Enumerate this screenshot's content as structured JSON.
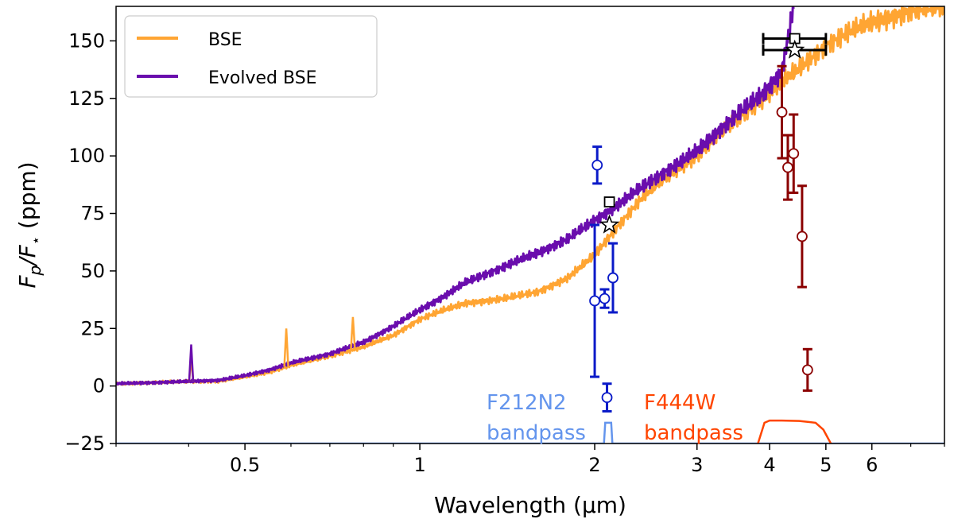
{
  "chart_data": {
    "type": "line",
    "xscale": "log",
    "xlabel_prefix": "Wavelength (",
    "xlabel_unit": "μm",
    "xlabel_suffix": ")",
    "ylabel_main": "F",
    "ylabel_sub_p": "p",
    "ylabel_slash": "/F",
    "ylabel_star": "⋆",
    "ylabel_units": " (ppm)",
    "xlim": [
      0.3,
      8.0
    ],
    "ylim": [
      -25,
      165
    ],
    "xticks": [
      {
        "value": 0.5,
        "label": "0.5"
      },
      {
        "value": 1,
        "label": "1"
      },
      {
        "value": 2,
        "label": "2"
      },
      {
        "value": 3,
        "label": "3"
      },
      {
        "value": 4,
        "label": "4"
      },
      {
        "value": 5,
        "label": "5"
      },
      {
        "value": 6,
        "label": "6"
      }
    ],
    "yticks": [
      {
        "value": -25,
        "label": "−25"
      },
      {
        "value": 0,
        "label": "0"
      },
      {
        "value": 25,
        "label": "25"
      },
      {
        "value": 50,
        "label": "50"
      },
      {
        "value": 75,
        "label": "75"
      },
      {
        "value": 100,
        "label": "100"
      },
      {
        "value": 125,
        "label": "125"
      },
      {
        "value": 150,
        "label": "150"
      }
    ],
    "legend": {
      "position": "top-left",
      "entries": [
        {
          "label": "BSE",
          "color": "#ffa533"
        },
        {
          "label": "Evolved BSE",
          "color": "#6a0dad"
        }
      ]
    },
    "series": [
      {
        "name": "BSE",
        "color": "#ffa533",
        "x": [
          0.3,
          0.35,
          0.4,
          0.45,
          0.5,
          0.55,
          0.6,
          0.7,
          0.8,
          0.9,
          1.0,
          1.1,
          1.2,
          1.4,
          1.6,
          1.8,
          2.0,
          2.2,
          2.4,
          2.6,
          2.8,
          3.0,
          3.3,
          3.6,
          3.9,
          4.2,
          4.5,
          5.0,
          5.5,
          6.0,
          7.0,
          8.0
        ],
        "y": [
          1,
          1.5,
          2,
          2,
          4,
          6,
          9,
          13,
          17,
          22,
          29,
          33,
          36,
          38,
          41,
          47,
          57,
          70,
          81,
          89,
          95,
          100,
          110,
          118,
          125,
          132,
          138,
          148,
          154,
          158,
          163,
          165
        ]
      },
      {
        "name": "Evolved BSE",
        "color": "#6a0dad",
        "x": [
          0.3,
          0.35,
          0.4,
          0.45,
          0.5,
          0.55,
          0.6,
          0.7,
          0.8,
          0.9,
          1.0,
          1.1,
          1.2,
          1.4,
          1.6,
          1.8,
          2.0,
          2.2,
          2.4,
          2.6,
          2.8,
          3.0,
          3.3,
          3.6,
          3.9,
          4.2,
          4.4
        ],
        "y": [
          1,
          1.5,
          2,
          2.5,
          4.5,
          7,
          10,
          14,
          19,
          26,
          33,
          39,
          45,
          52,
          58,
          64,
          72,
          79,
          86,
          92,
          97,
          102,
          112,
          120,
          127,
          137,
          165
        ]
      }
    ],
    "spikes": [
      {
        "series": "BSE",
        "x": 0.404,
        "y": 12
      },
      {
        "series": "Evolved BSE",
        "x": 0.404,
        "y": 18
      },
      {
        "series": "BSE",
        "x": 0.589,
        "y": 25
      },
      {
        "series": "BSE",
        "x": 0.767,
        "y": 30
      }
    ],
    "observations": [
      {
        "group": "F212N2",
        "color": "#0a1ac8",
        "x": 2.02,
        "y": 96,
        "yerr": 8
      },
      {
        "group": "F212N2",
        "color": "#0a1ac8",
        "x": 2.0,
        "y": 37,
        "yerr": 33
      },
      {
        "group": "F212N2",
        "color": "#0a1ac8",
        "x": 2.08,
        "y": 38,
        "yerr": 4
      },
      {
        "group": "F212N2",
        "color": "#0a1ac8",
        "x": 2.15,
        "y": 47,
        "yerr": 15
      },
      {
        "group": "F212N2",
        "color": "#0a1ac8",
        "x": 2.1,
        "y": -5,
        "yerr": 6
      },
      {
        "group": "F444W",
        "color": "#8b0000",
        "x": 4.2,
        "y": 119,
        "yerr": 20
      },
      {
        "group": "F444W",
        "color": "#8b0000",
        "x": 4.3,
        "y": 95,
        "yerr": 14
      },
      {
        "group": "F444W",
        "color": "#8b0000",
        "x": 4.4,
        "y": 101,
        "yerr": 17
      },
      {
        "group": "F444W",
        "color": "#8b0000",
        "x": 4.55,
        "y": 65,
        "yerr": 22
      },
      {
        "group": "F444W",
        "color": "#8b0000",
        "x": 4.65,
        "y": 7,
        "yerr": 9
      }
    ],
    "band_averages": [
      {
        "marker": "square",
        "label": "BSE band average F212N2",
        "x": 2.12,
        "y": 80
      },
      {
        "marker": "star",
        "label": "Evolved BSE band average F212N2",
        "x": 2.12,
        "y": 70
      },
      {
        "marker": "square",
        "label": "BSE band average F444W",
        "x": 4.42,
        "y": 151,
        "xerr": [
          3.9,
          5.0
        ]
      },
      {
        "marker": "star",
        "label": "Evolved BSE band average F444W",
        "x": 4.42,
        "y": 146,
        "xerr": [
          3.9,
          5.0
        ]
      }
    ],
    "bandpasses": [
      {
        "name": "F212N2",
        "label_line1": "F212N2",
        "label_line2": "bandpass",
        "color": "#6495ed",
        "x": [
          0.3,
          2.04,
          2.075,
          2.085,
          2.135,
          2.145,
          2.18,
          8.0
        ],
        "y": [
          -25,
          -25,
          -25,
          -16,
          -16,
          -25,
          -25,
          -25
        ]
      },
      {
        "name": "F444W",
        "label_line1": "F444W",
        "label_line2": "bandpass",
        "color": "#ff4500",
        "x": [
          3.82,
          3.92,
          4.0,
          4.2,
          4.5,
          4.8,
          4.95,
          5.1
        ],
        "y": [
          -25,
          -16,
          -15,
          -15,
          -15.2,
          -16,
          -19,
          -25
        ]
      }
    ]
  }
}
